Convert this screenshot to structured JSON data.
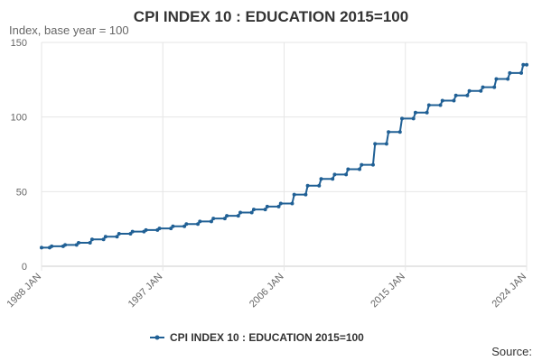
{
  "chart_data": {
    "type": "line",
    "title": "CPI INDEX 10 : EDUCATION 2015=100",
    "ylabel": "Index, base year = 100",
    "xlabel": "",
    "x_tick_labels": [
      "1988 JAN",
      "1997 JAN",
      "2006 JAN",
      "2015 JAN",
      "2024 JAN"
    ],
    "x_tick_years": [
      1988,
      1997,
      2006,
      2015,
      2024
    ],
    "xlim": [
      1988,
      2024
    ],
    "ylim": [
      0,
      150
    ],
    "y_ticks": [
      0,
      50,
      100,
      150
    ],
    "grid": true,
    "legend": "bottom-center",
    "series": [
      {
        "name": "CPI INDEX 10 : EDUCATION 2015=100",
        "color": "#206095",
        "points": [
          [
            1988.0,
            12.5
          ],
          [
            1988.6,
            12.5
          ],
          [
            1988.75,
            13.4
          ],
          [
            1989.6,
            13.4
          ],
          [
            1989.75,
            14.3
          ],
          [
            1990.6,
            14.3
          ],
          [
            1990.75,
            15.7
          ],
          [
            1991.6,
            15.7
          ],
          [
            1991.75,
            18.0
          ],
          [
            1992.6,
            18.0
          ],
          [
            1992.75,
            19.8
          ],
          [
            1993.6,
            19.8
          ],
          [
            1993.75,
            21.8
          ],
          [
            1994.6,
            21.8
          ],
          [
            1994.75,
            23.2
          ],
          [
            1995.6,
            23.2
          ],
          [
            1995.75,
            24.3
          ],
          [
            1996.6,
            24.3
          ],
          [
            1996.75,
            25.3
          ],
          [
            1997.6,
            25.3
          ],
          [
            1997.75,
            26.8
          ],
          [
            1998.6,
            26.8
          ],
          [
            1998.75,
            28.3
          ],
          [
            1999.6,
            28.3
          ],
          [
            1999.75,
            30.0
          ],
          [
            2000.6,
            30.0
          ],
          [
            2000.75,
            32.0
          ],
          [
            2001.6,
            32.0
          ],
          [
            2001.75,
            33.8
          ],
          [
            2002.6,
            33.8
          ],
          [
            2002.75,
            36.0
          ],
          [
            2003.6,
            36.0
          ],
          [
            2003.75,
            38.0
          ],
          [
            2004.6,
            38.0
          ],
          [
            2004.75,
            40.0
          ],
          [
            2005.6,
            40.0
          ],
          [
            2005.75,
            42.0
          ],
          [
            2006.6,
            42.0
          ],
          [
            2006.75,
            48.0
          ],
          [
            2007.6,
            48.0
          ],
          [
            2007.75,
            54.0
          ],
          [
            2008.6,
            54.0
          ],
          [
            2008.75,
            58.5
          ],
          [
            2009.6,
            58.5
          ],
          [
            2009.75,
            61.5
          ],
          [
            2010.6,
            61.5
          ],
          [
            2010.75,
            65.0
          ],
          [
            2011.6,
            65.0
          ],
          [
            2011.75,
            68.0
          ],
          [
            2012.6,
            68.0
          ],
          [
            2012.75,
            82.0
          ],
          [
            2013.6,
            82.0
          ],
          [
            2013.75,
            90.0
          ],
          [
            2014.6,
            90.0
          ],
          [
            2014.75,
            99.0
          ],
          [
            2015.6,
            99.0
          ],
          [
            2015.75,
            103.0
          ],
          [
            2016.6,
            103.0
          ],
          [
            2016.75,
            108.0
          ],
          [
            2017.6,
            108.0
          ],
          [
            2017.75,
            111.0
          ],
          [
            2018.6,
            111.0
          ],
          [
            2018.75,
            114.5
          ],
          [
            2019.6,
            114.5
          ],
          [
            2019.75,
            117.5
          ],
          [
            2020.6,
            117.5
          ],
          [
            2020.75,
            120.0
          ],
          [
            2021.6,
            120.0
          ],
          [
            2021.75,
            125.5
          ],
          [
            2022.6,
            125.5
          ],
          [
            2022.75,
            129.5
          ],
          [
            2023.6,
            129.5
          ],
          [
            2023.75,
            135.0
          ],
          [
            2024.0,
            135.0
          ]
        ]
      }
    ],
    "source_label": "Source:"
  }
}
